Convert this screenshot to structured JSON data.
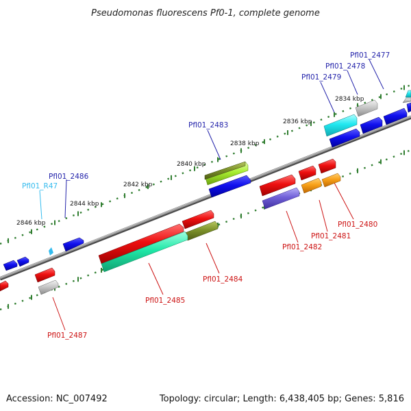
{
  "title": "Pseudomonas fluorescens Pf0-1, complete genome",
  "footer": {
    "accession": "Accession: NC_007492",
    "info": "Topology: circular; Length: 6,438,405 bp; Genes: 5,816"
  },
  "colors": {
    "background": "#ffffff",
    "backbone": "#888888",
    "tick": "#2f7d2f",
    "forward_label": "#2222aa",
    "reverse_label": "#cc1111",
    "rna_label": "#33bbee"
  },
  "scale_labels": [
    "2834 kbp",
    "2836 kbp",
    "2838 kbp",
    "2840 kbp",
    "2842 kbp",
    "2844 kbp",
    "2846 kbp"
  ],
  "gene_labels": {
    "pfl01_2477": "Pfl01_2477",
    "pfl01_2478": "Pfl01_2478",
    "pfl01_2479": "Pfl01_2479",
    "pfl01_2483": "Pfl01_2483",
    "pfl01_2486": "Pfl01_2486",
    "pfl01_r47": "Pfl01_R47",
    "pfl01_2480": "Pfl01_2480",
    "pfl01_2481": "Pfl01_2481",
    "pfl01_2482": "Pfl01_2482",
    "pfl01_2484": "Pfl01_2484",
    "pfl01_2485": "Pfl01_2485",
    "pfl01_2487": "Pfl01_2487"
  }
}
